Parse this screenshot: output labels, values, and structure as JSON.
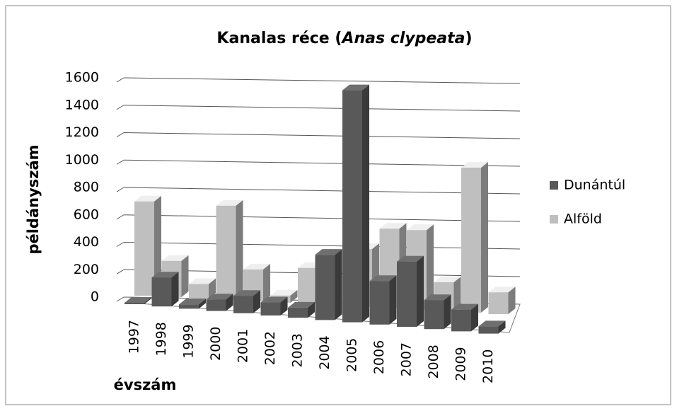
{
  "chart_data": {
    "type": "bar3d",
    "title": [
      "Kanalas réce (",
      "Anas clypeata",
      ")"
    ],
    "x_label": "évszám",
    "y_label": "példányszám",
    "categories": [
      "1997",
      "1998",
      "1999",
      "2000",
      "2001",
      "2002",
      "2003",
      "2004",
      "2005",
      "2006",
      "2007",
      "2008",
      "2009",
      "2010"
    ],
    "series": [
      {
        "name": "Dunántúl",
        "color": "#595959",
        "values": [
          10,
          200,
          30,
          80,
          120,
          90,
          70,
          450,
          1600,
          300,
          450,
          200,
          150,
          50
        ]
      },
      {
        "name": "Alföld",
        "color": "#bfbfbf",
        "values": [
          650,
          250,
          100,
          650,
          220,
          50,
          250,
          0,
          400,
          550,
          550,
          200,
          1000,
          150
        ]
      }
    ],
    "ylim": [
      0,
      1600
    ],
    "yticks": [
      0,
      200,
      400,
      600,
      800,
      1000,
      1200,
      1400,
      1600
    ],
    "grid": true,
    "legend": "right"
  }
}
